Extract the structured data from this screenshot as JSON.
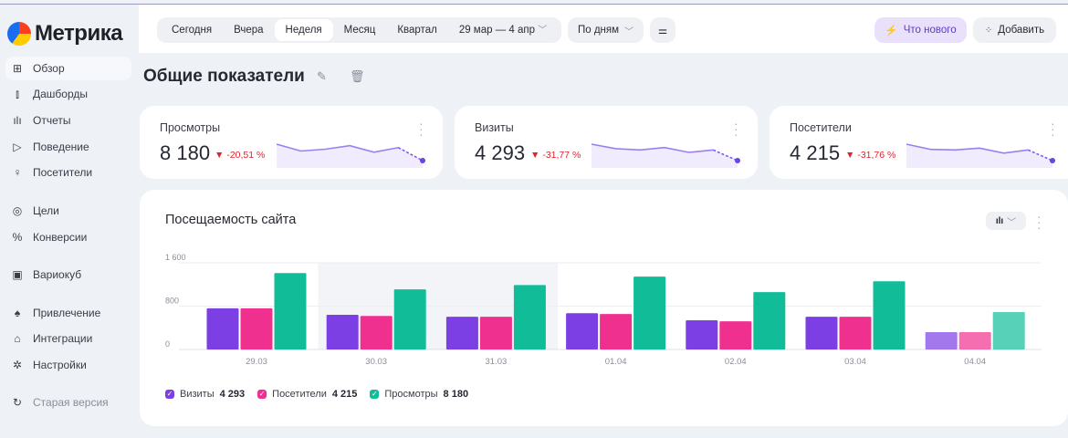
{
  "app": {
    "logo": "Метрика"
  },
  "sidebar": {
    "items": [
      {
        "label": "Обзор",
        "icon": "grid-icon",
        "glyph": "⊞"
      },
      {
        "label": "Дашборды",
        "icon": "dashboards-icon",
        "glyph": "⫾"
      },
      {
        "label": "Отчеты",
        "icon": "reports-icon",
        "glyph": "ılı"
      },
      {
        "label": "Поведение",
        "icon": "play-icon",
        "glyph": "▷"
      },
      {
        "label": "Посетители",
        "icon": "user-icon",
        "glyph": "♀"
      },
      {
        "label": "Цели",
        "icon": "target-icon",
        "glyph": "◎"
      },
      {
        "label": "Конверсии",
        "icon": "percent-icon",
        "glyph": "%"
      },
      {
        "label": "Вариокуб",
        "icon": "variocube-icon",
        "glyph": "▣"
      },
      {
        "label": "Привлечение",
        "icon": "flame-icon",
        "glyph": "♠"
      },
      {
        "label": "Интеграции",
        "icon": "integrations-icon",
        "glyph": "⌂"
      },
      {
        "label": "Настройки",
        "icon": "gear-icon",
        "glyph": "✲"
      },
      {
        "label": "Старая версия",
        "icon": "undo-icon",
        "glyph": "↻"
      }
    ]
  },
  "topbar": {
    "periods": [
      "Сегодня",
      "Вчера",
      "Неделя",
      "Месяц",
      "Квартал"
    ],
    "active_period": "Неделя",
    "date_range": "29 мар — 4 апр",
    "grouping": "По дням",
    "whats_new": "Что нового",
    "add": "Добавить"
  },
  "page": {
    "title": "Общие показатели"
  },
  "kpis": [
    {
      "label": "Просмотры",
      "value": "8 180",
      "delta": "-20,51 %",
      "series": "Просмотры"
    },
    {
      "label": "Визиты",
      "value": "4 293",
      "delta": "-31,77 %",
      "series": "Визиты"
    },
    {
      "label": "Посетители",
      "value": "4 215",
      "delta": "-31,76 %",
      "series": "Посетители"
    }
  ],
  "colors": {
    "visits": "#7b3fe4",
    "visitors": "#f0308f",
    "views": "#10bd98",
    "accent": "#7b5ce9",
    "negative": "#e0242f"
  },
  "chart_data": {
    "type": "bar",
    "title": "Посещаемость сайта",
    "categories": [
      "29.03",
      "30.03",
      "31.03",
      "01.04",
      "02.04",
      "03.04",
      "04.04"
    ],
    "series": [
      {
        "name": "Визиты",
        "total": "4 293",
        "color": "#7b3fe4",
        "values": [
          760,
          640,
          605,
          670,
          540,
          605,
          320
        ]
      },
      {
        "name": "Посетители",
        "total": "4 215",
        "color": "#f0308f",
        "values": [
          760,
          620,
          605,
          655,
          520,
          605,
          320
        ]
      },
      {
        "name": "Просмотры",
        "total": "8 180",
        "color": "#10bd98",
        "values": [
          1410,
          1110,
          1190,
          1345,
          1060,
          1260,
          690
        ]
      }
    ],
    "yticks": [
      "0",
      "800",
      "1 600"
    ],
    "ytick_values": [
      0,
      800,
      1600
    ],
    "ylim": [
      0,
      1600
    ],
    "grid": true,
    "legend": "bottom-left",
    "highlighted_categories": [
      "30.03",
      "31.03"
    ]
  }
}
